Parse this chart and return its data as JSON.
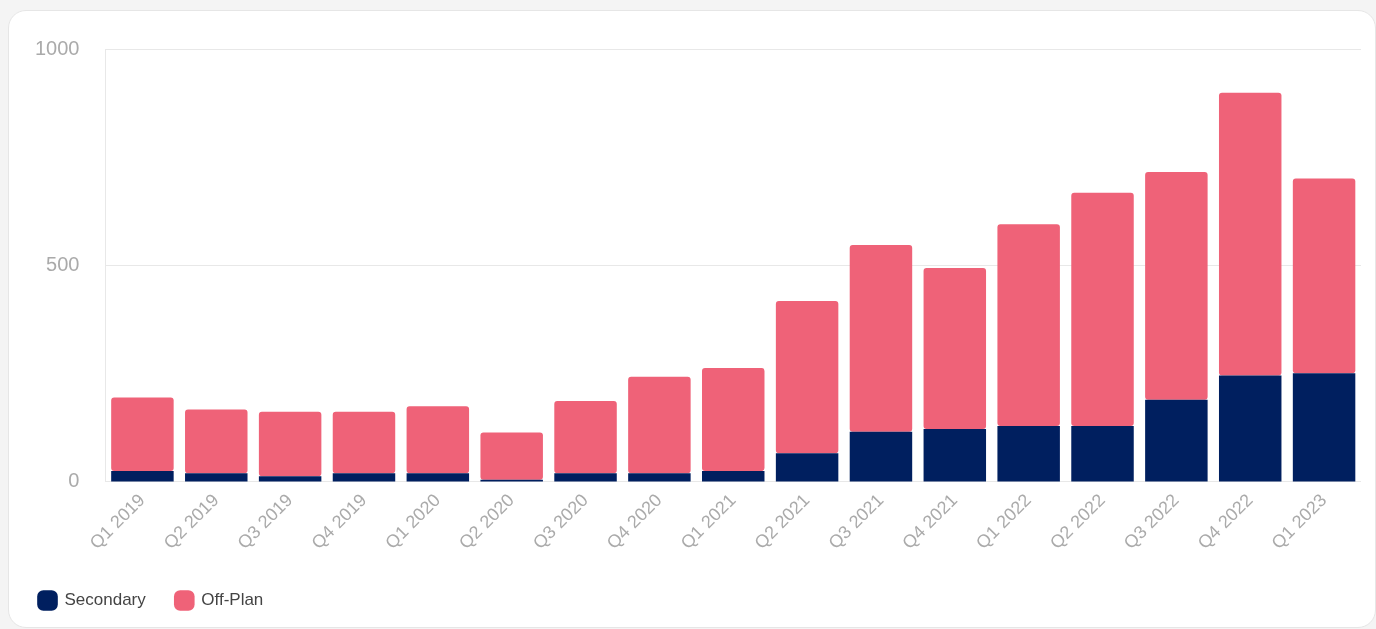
{
  "chart_data": {
    "type": "bar",
    "stacked": true,
    "categories": [
      "Q1 2019",
      "Q2 2019",
      "Q3 2019",
      "Q4 2019",
      "Q1 2020",
      "Q2 2020",
      "Q3 2020",
      "Q4 2020",
      "Q1 2021",
      "Q2 2021",
      "Q3 2021",
      "Q4 2021",
      "Q1 2022",
      "Q2 2022",
      "Q3 2022",
      "Q4 2022",
      "Q1 2023"
    ],
    "series": [
      {
        "name": "Secondary",
        "color": "#001f5f",
        "values": [
          25,
          20,
          13,
          20,
          20,
          5,
          20,
          20,
          25,
          66,
          116,
          122,
          129,
          129,
          190,
          246,
          251
        ]
      },
      {
        "name": "Off-Plan",
        "color": "#ef6278",
        "values": [
          170,
          147,
          149,
          142,
          155,
          109,
          167,
          223,
          238,
          352,
          431,
          372,
          466,
          539,
          526,
          653,
          450
        ]
      }
    ],
    "ylim": [
      0,
      1000
    ],
    "yticks": [
      0,
      500,
      1000
    ],
    "grid": "y",
    "legend": "bottom left"
  }
}
